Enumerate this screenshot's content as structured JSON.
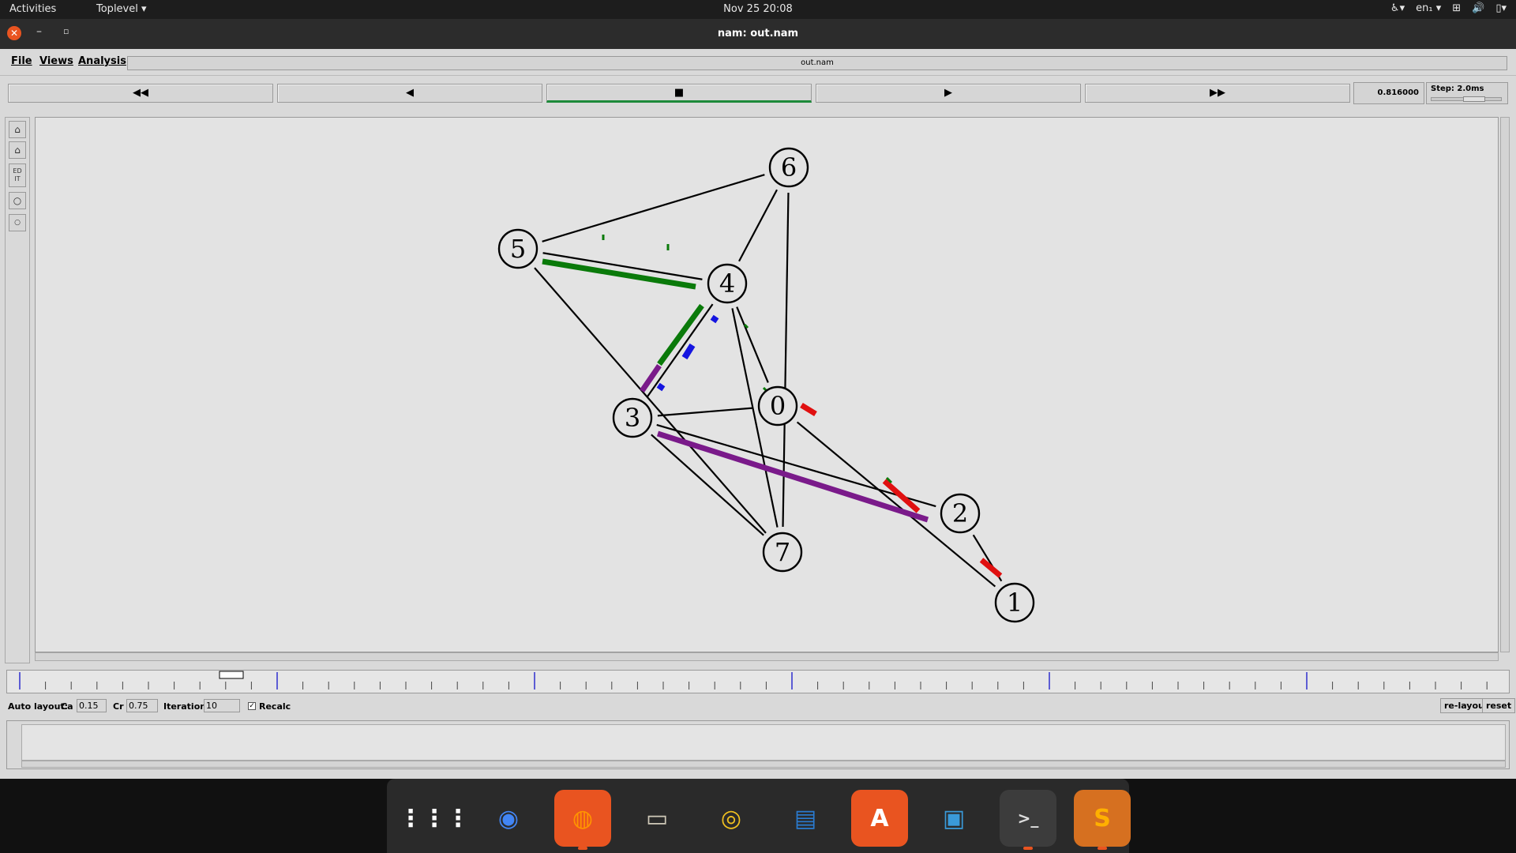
{
  "topbar": {
    "activities": "Activities",
    "toplevel": "Toplevel ▾",
    "clock": "Nov 25  20:08",
    "keyboard": "en₁ ▾"
  },
  "window": {
    "title": "nam: out.nam"
  },
  "menu": {
    "file": "File",
    "views": "Views",
    "analysis": "Analysis",
    "filename": "out.nam"
  },
  "controls": {
    "rewind": "◀◀",
    "back": "◀",
    "stop": "■",
    "play": "▶",
    "forward": "▶▶",
    "time": "0.816000",
    "step": "Step: 2.0ms"
  },
  "tools": {
    "edit": "ED IT"
  },
  "graph": {
    "nodes": [
      {
        "id": "0",
        "label": "0"
      },
      {
        "id": "1",
        "label": "1"
      },
      {
        "id": "2",
        "label": "2"
      },
      {
        "id": "3",
        "label": "3"
      },
      {
        "id": "4",
        "label": "4"
      },
      {
        "id": "5",
        "label": "5"
      },
      {
        "id": "6",
        "label": "6"
      },
      {
        "id": "7",
        "label": "7"
      }
    ],
    "flow_colors": {
      "green": "#0a7a0a",
      "blue": "#1515e0",
      "purple": "#7a1a8a",
      "red": "#e01010"
    }
  },
  "autolayout": {
    "label": "Auto layout:",
    "ca_label": "Ca",
    "ca_value": "0.15",
    "cr_label": "Cr",
    "cr_value": "0.75",
    "iter_label": "Iterations",
    "iter_value": "10",
    "recalc": "Recalc",
    "relayout": "re-layout",
    "reset": "reset"
  },
  "dock": {
    "apps": [
      {
        "name": "show-apps",
        "glyph": "⋮⋮⋮"
      },
      {
        "name": "chrome",
        "glyph": "◉"
      },
      {
        "name": "firefox",
        "glyph": "◍"
      },
      {
        "name": "files",
        "glyph": "▭"
      },
      {
        "name": "rhythmbox",
        "glyph": "◎"
      },
      {
        "name": "writer",
        "glyph": "▤"
      },
      {
        "name": "software",
        "glyph": "A"
      },
      {
        "name": "shotwell",
        "glyph": "▣"
      },
      {
        "name": "terminal",
        "glyph": ">_"
      },
      {
        "name": "sublime",
        "glyph": "S"
      }
    ]
  }
}
